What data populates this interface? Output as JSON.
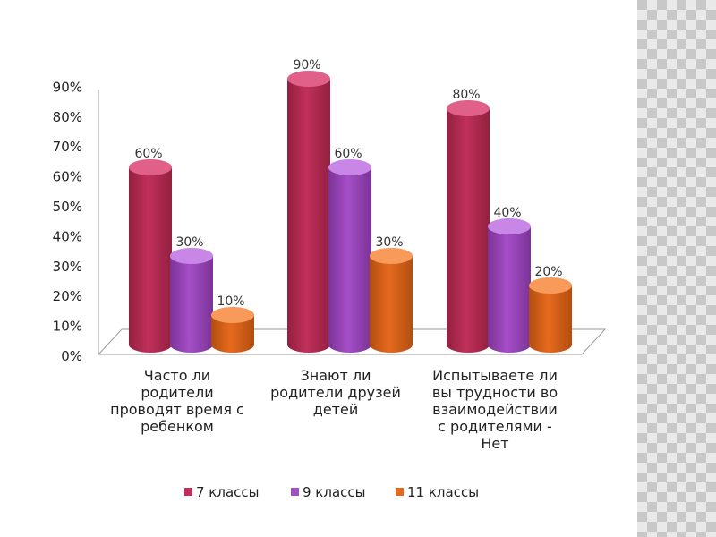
{
  "colors": {
    "series": [
      "#c0305a",
      "#a54ec8",
      "#e66a1e"
    ],
    "series_dark": [
      "#93203f",
      "#7b3396",
      "#b24e10"
    ],
    "series_light": [
      "#e0608a",
      "#c886e6",
      "#f79a5a"
    ]
  },
  "chart_data": {
    "type": "bar",
    "categories": [
      [
        "Часто ли",
        "родители",
        "проводят время с",
        "ребенком"
      ],
      [
        "Знают ли",
        "родители друзей",
        "детей"
      ],
      [
        "Испытываете ли",
        "вы трудности во",
        "взаимодействии",
        "с родителями -",
        "Нет"
      ]
    ],
    "series": [
      {
        "name": "7 классы",
        "values": [
          60,
          90,
          80
        ]
      },
      {
        "name": "9 классы",
        "values": [
          30,
          60,
          40
        ]
      },
      {
        "name": "11 классы",
        "values": [
          10,
          30,
          20
        ]
      }
    ],
    "ylim": [
      0,
      90
    ],
    "yticks": [
      "0%",
      "10%",
      "20%",
      "30%",
      "40%",
      "50%",
      "60%",
      "70%",
      "80%",
      "90%"
    ],
    "value_suffix": "%",
    "legend_position": "bottom",
    "grid": false
  }
}
